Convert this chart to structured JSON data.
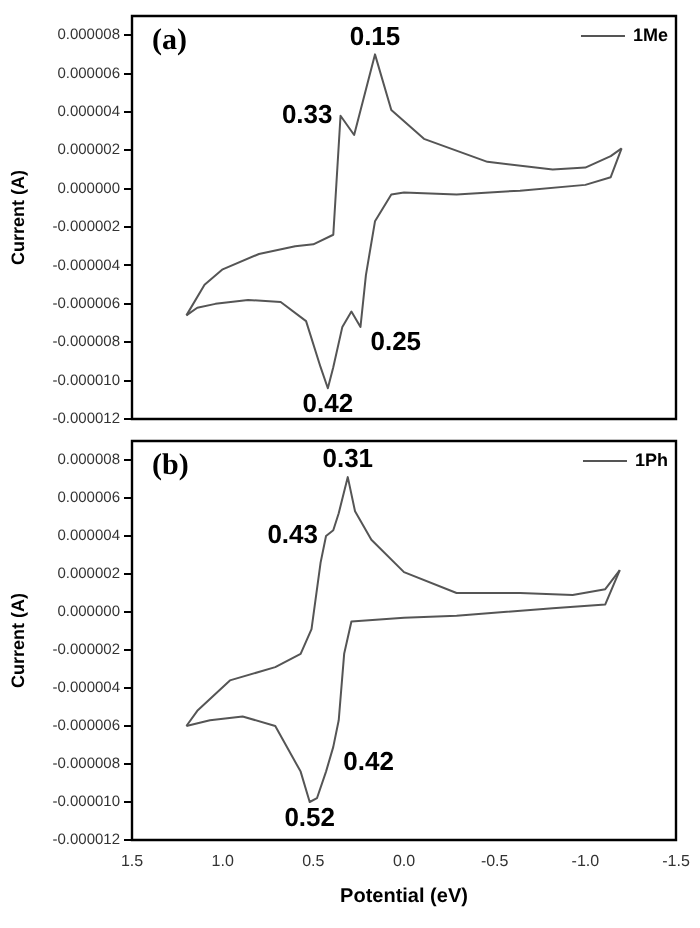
{
  "chart_data": [
    {
      "type": "line",
      "ylabel": "Current (A)",
      "legend": "top right",
      "tick_labels": "y",
      "marker": "none",
      "line_style": "solid",
      "grid": false,
      "xlim": [
        1.5,
        -1.5
      ],
      "xticks": [
        {
          "value": 1.5,
          "label": null
        },
        {
          "value": 1.0,
          "label": null
        },
        {
          "value": 0.5,
          "label": null
        },
        {
          "value": 0,
          "label": null
        },
        {
          "value": -0.5,
          "label": null
        },
        {
          "value": -1.0,
          "label": null
        },
        {
          "value": -1.5,
          "label": null
        }
      ],
      "ylim": [
        -1.2e-05,
        9e-06
      ],
      "yticks": [
        {
          "value": -1.2e-05,
          "label": "-0.000012"
        },
        {
          "value": -1e-05,
          "label": "-0.000010"
        },
        {
          "value": -8e-06,
          "label": "-0.000008"
        },
        {
          "value": -6e-06,
          "label": "-0.000006"
        },
        {
          "value": -4e-06,
          "label": "-0.000004"
        },
        {
          "value": -2e-06,
          "label": "-0.000002"
        },
        {
          "value": 0,
          "label": "0.000000"
        },
        {
          "value": 2e-06,
          "label": "0.000002"
        },
        {
          "value": 4e-06,
          "label": "0.000004"
        },
        {
          "value": 6e-06,
          "label": "0.000006"
        },
        {
          "value": 8e-06,
          "label": "0.000008"
        }
      ],
      "annotations": [
        "(a)",
        {
          "text": "0.15",
          "x": 0.16,
          "y": 7e-06
        },
        {
          "text": "0.33",
          "x": 0.35,
          "y": 3.8e-06
        },
        {
          "text": "0.25",
          "x": 0.24,
          "y": -7.2e-06
        },
        {
          "text": "0.42",
          "x": 0.42,
          "y": -1.04e-05
        }
      ],
      "series": [
        {
          "name": "1Me",
          "color": "#555555",
          "x": [
            1.2,
            1.1,
            1.0,
            0.8,
            0.6,
            0.5,
            0.39,
            0.35,
            0.275,
            0.16,
            0.07,
            -0.11,
            -0.46,
            -0.82,
            -1.0,
            -1.14,
            -1.2
          ],
          "values": [
            -6.6e-06,
            -5e-06,
            -4.2e-06,
            -3.4e-06,
            -3e-06,
            -2.9e-06,
            -2.4e-06,
            3.8e-06,
            2.8e-06,
            7e-06,
            4.1e-06,
            2.6e-06,
            1.4e-06,
            1e-06,
            1.1e-06,
            1.7e-06,
            2.1e-06
          ]
        },
        {
          "color": "#555555",
          "x": [
            -1.2,
            -1.14,
            -1.0,
            -0.64,
            -0.29,
            0,
            0.07,
            0.16,
            0.21,
            0.24,
            0.29,
            0.34,
            0.39,
            0.42,
            0.46,
            0.54,
            0.68,
            0.86,
            1.04,
            1.14,
            1.2
          ],
          "values": [
            2.1e-06,
            6e-07,
            2e-07,
            -1e-07,
            -3e-07,
            -2e-07,
            -3e-07,
            -1.7e-06,
            -4.5e-06,
            -7.2e-06,
            -6.4e-06,
            -7.2e-06,
            -9.3e-06,
            -1.04e-05,
            -9.3e-06,
            -6.9e-06,
            -5.9e-06,
            -5.8e-06,
            -6e-06,
            -6.2e-06,
            -6.6e-06
          ]
        }
      ]
    },
    {
      "type": "line",
      "xlabel": "Potential (eV)",
      "ylabel": "Current (A)",
      "legend": "top right",
      "marker": "none",
      "line_style": "solid",
      "grid": false,
      "xlim": [
        1.5,
        -1.5
      ],
      "xticks": [
        {
          "value": 1.5,
          "label": "1.5"
        },
        {
          "value": 1.0,
          "label": "1.0"
        },
        {
          "value": 0.5,
          "label": "0.5"
        },
        {
          "value": 0,
          "label": "0.0"
        },
        {
          "value": -0.5,
          "label": "-0.5"
        },
        {
          "value": -1.0,
          "label": "-1.0"
        },
        {
          "value": -1.5,
          "label": "-1.5"
        }
      ],
      "ylim": [
        -1.2e-05,
        9e-06
      ],
      "yticks": [
        {
          "value": -1.2e-05,
          "label": "-0.000012"
        },
        {
          "value": -1e-05,
          "label": "-0.000010"
        },
        {
          "value": -8e-06,
          "label": "-0.000008"
        },
        {
          "value": -6e-06,
          "label": "-0.000006"
        },
        {
          "value": -4e-06,
          "label": "-0.000004"
        },
        {
          "value": -2e-06,
          "label": "-0.000002"
        },
        {
          "value": 0,
          "label": "0.000000"
        },
        {
          "value": 2e-06,
          "label": "0.000002"
        },
        {
          "value": 4e-06,
          "label": "0.000004"
        },
        {
          "value": 6e-06,
          "label": "0.000006"
        },
        {
          "value": 8e-06,
          "label": "0.000008"
        }
      ],
      "annotations": [
        "(b)",
        {
          "text": "0.31",
          "x": 0.31,
          "y": 7.1e-06
        },
        {
          "text": "0.43",
          "x": 0.43,
          "y": 4e-06
        },
        {
          "text": "0.42",
          "x": 0.39,
          "y": -7.1e-06
        },
        {
          "text": "0.52",
          "x": 0.52,
          "y": -1e-05
        }
      ],
      "series": [
        {
          "name": "1Ph",
          "color": "#555555",
          "x": [
            1.2,
            1.14,
            0.96,
            0.71,
            0.57,
            0.51,
            0.46,
            0.43,
            0.39,
            0.36,
            0.31,
            0.27,
            0.18,
            0,
            -0.29,
            -0.64,
            -0.93,
            -1.11,
            -1.19
          ],
          "values": [
            -6e-06,
            -5.2e-06,
            -3.6e-06,
            -2.9e-06,
            -2.2e-06,
            -9e-07,
            2.6e-06,
            4e-06,
            4.3e-06,
            5.2e-06,
            7.1e-06,
            5.3e-06,
            3.8e-06,
            2.1e-06,
            1e-06,
            1e-06,
            9e-07,
            1.2e-06,
            2.2e-06
          ]
        },
        {
          "color": "#555555",
          "x": [
            -1.19,
            -1.11,
            -0.82,
            -0.29,
            0,
            0.29,
            0.33,
            0.36,
            0.39,
            0.43,
            0.48,
            0.52,
            0.57,
            0.71,
            0.89,
            1.07,
            1.2
          ],
          "values": [
            2.2e-06,
            4e-07,
            2e-07,
            -2e-07,
            -3e-07,
            -5e-07,
            -2.2e-06,
            -5.7e-06,
            -7.1e-06,
            -8.4e-06,
            -9.8e-06,
            -1e-05,
            -8.4e-06,
            -6e-06,
            -5.5e-06,
            -5.7e-06,
            -6e-06
          ]
        }
      ]
    }
  ]
}
